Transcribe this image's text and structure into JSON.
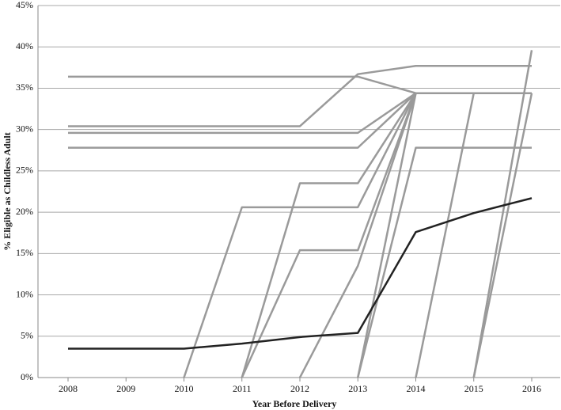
{
  "chart_data": {
    "type": "line",
    "x_label": "Year Before Delivery",
    "y_label": "% Eligible as Childless Adult",
    "categories": [
      "2008",
      "2009",
      "2010",
      "2011",
      "2012",
      "2013",
      "2014",
      "2015",
      "2016"
    ],
    "ylim": [
      0,
      45
    ],
    "yticks": [
      {
        "value": 0,
        "label": "0%"
      },
      {
        "value": 5,
        "label": "5%"
      },
      {
        "value": 10,
        "label": "10%"
      },
      {
        "value": 15,
        "label": "15%"
      },
      {
        "value": 20,
        "label": "20%"
      },
      {
        "value": 25,
        "label": "25%"
      },
      {
        "value": 30,
        "label": "30%"
      },
      {
        "value": 35,
        "label": "35%"
      },
      {
        "value": 40,
        "label": "40%"
      },
      {
        "value": 45,
        "label": "45%"
      }
    ],
    "grid": true,
    "series": [
      {
        "color": "#9a9a9a",
        "values": [
          36.4,
          36.4,
          36.4,
          36.4,
          36.4,
          36.4,
          34.4,
          34.4,
          34.4
        ]
      },
      {
        "color": "#9a9a9a",
        "values": [
          30.4,
          30.4,
          30.4,
          30.4,
          30.4,
          36.7,
          37.7,
          37.7,
          37.7
        ]
      },
      {
        "color": "#9a9a9a",
        "values": [
          29.6,
          29.6,
          29.6,
          29.6,
          29.6,
          29.6,
          34.4,
          34.4,
          34.4
        ]
      },
      {
        "color": "#9a9a9a",
        "values": [
          27.8,
          27.8,
          27.8,
          27.8,
          27.8,
          27.8,
          34.4,
          34.4,
          34.4
        ]
      },
      {
        "color": "#9a9a9a",
        "values": [
          null,
          null,
          0,
          20.6,
          20.6,
          20.6,
          34.4,
          null,
          null
        ]
      },
      {
        "color": "#9a9a9a",
        "values": [
          null,
          null,
          null,
          0,
          23.5,
          23.5,
          34.4,
          null,
          null
        ]
      },
      {
        "color": "#9a9a9a",
        "values": [
          null,
          null,
          null,
          0,
          15.4,
          15.4,
          34.4,
          null,
          null
        ]
      },
      {
        "color": "#9a9a9a",
        "values": [
          null,
          null,
          null,
          null,
          0,
          13.5,
          34.4,
          null,
          null
        ]
      },
      {
        "color": "#9a9a9a",
        "values": [
          null,
          null,
          null,
          null,
          null,
          0,
          34.4,
          null,
          null
        ]
      },
      {
        "color": "#9a9a9a",
        "values": [
          null,
          null,
          null,
          null,
          null,
          0,
          27.8,
          27.8,
          27.8
        ]
      },
      {
        "color": "#9a9a9a",
        "values": [
          null,
          null,
          null,
          null,
          null,
          null,
          0,
          34.4,
          34.4
        ]
      },
      {
        "color": "#9a9a9a",
        "values": [
          null,
          null,
          null,
          null,
          null,
          null,
          null,
          0,
          39.6
        ]
      },
      {
        "color": "#9a9a9a",
        "values": [
          null,
          null,
          null,
          null,
          null,
          null,
          null,
          0,
          34.4
        ]
      },
      {
        "color": "#222222",
        "values": [
          3.5,
          3.5,
          3.5,
          4.1,
          4.9,
          5.4,
          17.6,
          19.9,
          21.7
        ]
      }
    ]
  }
}
